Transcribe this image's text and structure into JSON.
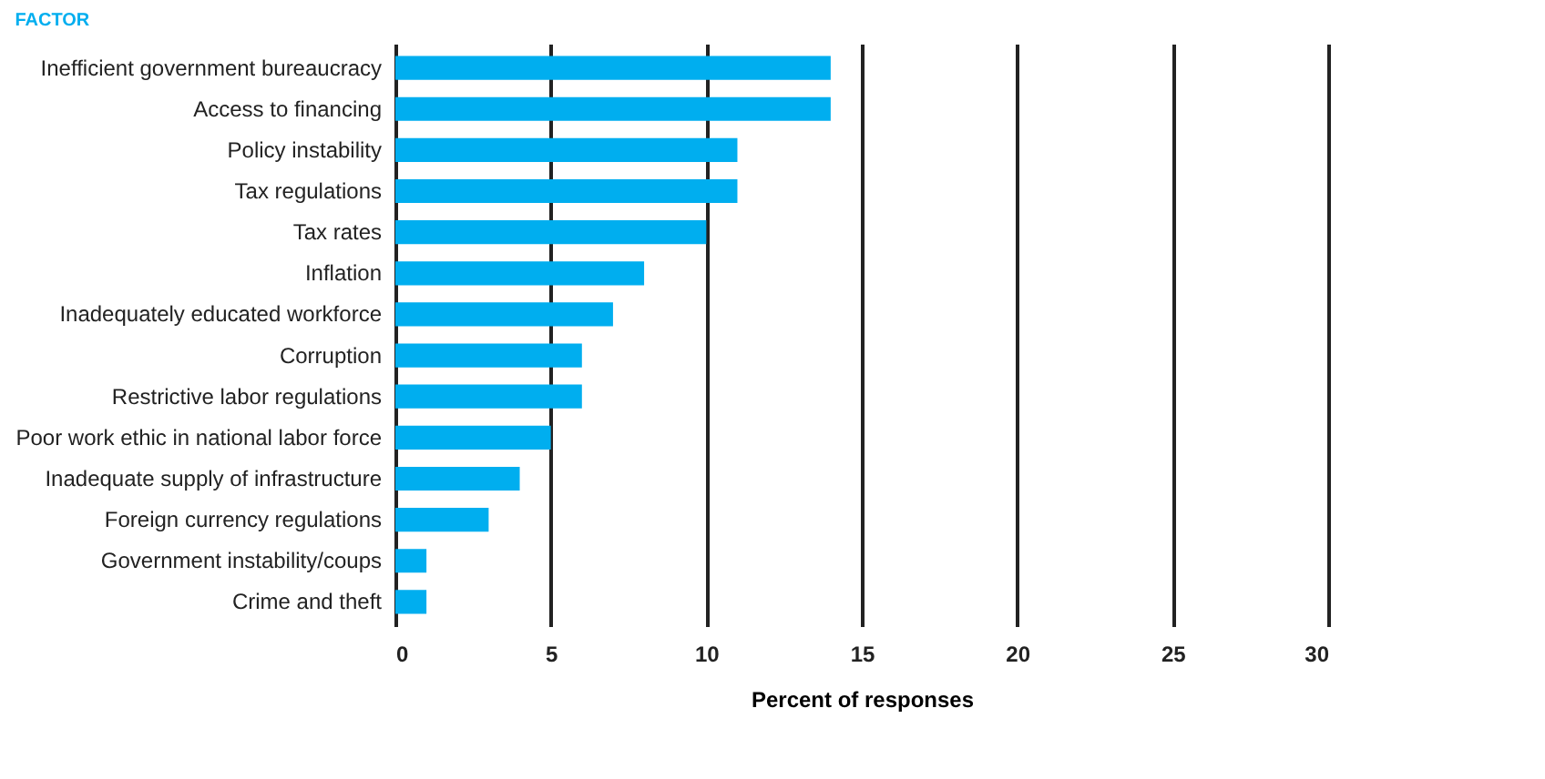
{
  "chart_data": {
    "type": "bar",
    "orientation": "horizontal",
    "annotations": [
      "FACTOR"
    ],
    "xlabel": "Percent of responses",
    "categories": [
      "Inefficient government bureaucracy",
      "Access to financing",
      "Policy instability",
      "Tax regulations",
      "Tax rates",
      "Inflation",
      "Inadequately educated workforce",
      "Corruption",
      "Restrictive labor regulations",
      "Poor work ethic in national labor force",
      "Inadequate supply of infrastructure",
      "Foreign currency regulations",
      "Government instability/coups",
      "Crime and theft"
    ],
    "values": [
      14,
      14,
      11,
      11,
      10,
      8,
      7,
      6,
      6,
      5,
      4,
      3,
      1,
      1
    ],
    "color": "#00aeef",
    "xlim": [
      0,
      30
    ],
    "xticks": [
      0,
      5,
      10,
      15,
      20,
      25,
      30
    ],
    "grid": "x"
  }
}
